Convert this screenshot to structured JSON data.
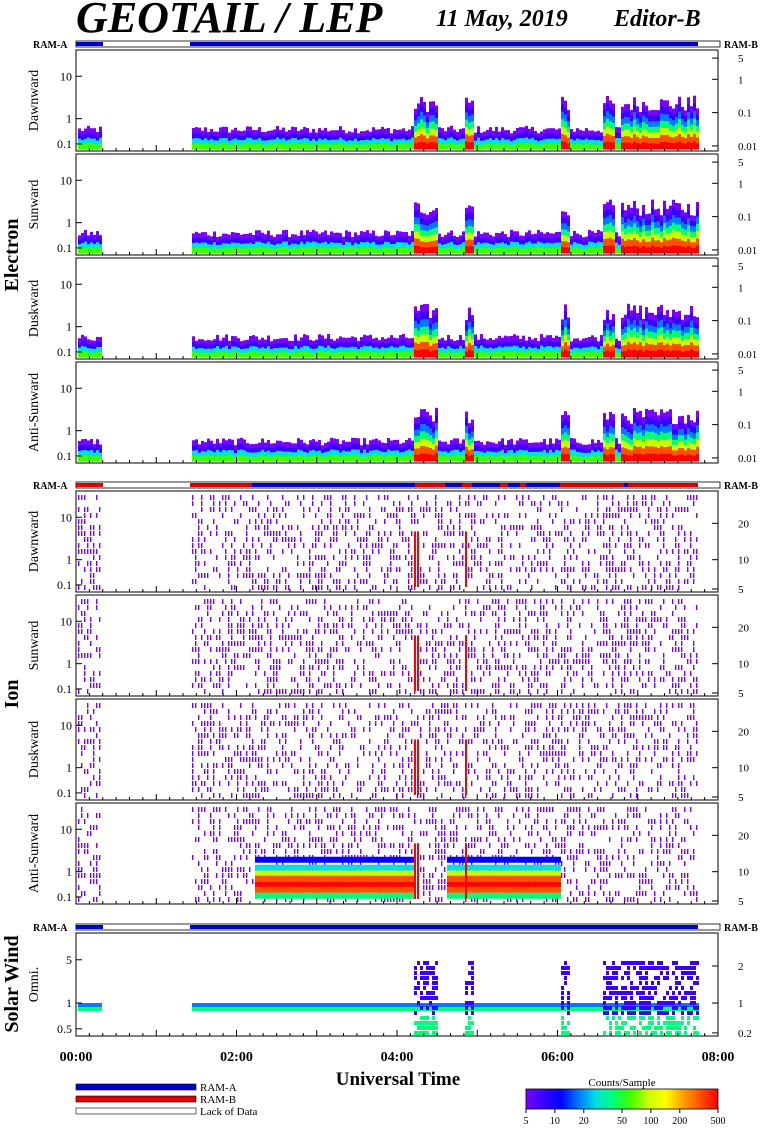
{
  "header": {
    "title": "GEOTAIL / LEP",
    "date": "11 May, 2019",
    "editor": "Editor-B"
  },
  "groups": {
    "electron": "Electron",
    "ion": "Ion",
    "solar_wind": "Solar Wind"
  },
  "ram_labels": {
    "a": "RAM-A",
    "b": "RAM-B"
  },
  "legend": {
    "ram_a": "RAM-A",
    "ram_b": "RAM-B",
    "lack": "Lack of Data",
    "colorbar_title": "Counts/Sample",
    "colorbar_ticks": [
      "5",
      "10",
      "20",
      "50",
      "100",
      "200",
      "500"
    ]
  },
  "colors": {
    "ram_a": "#0000cc",
    "ram_b": "#e00000",
    "lack": "#ffffff",
    "colormap": [
      "#7a00ff",
      "#3a00ff",
      "#0000ff",
      "#0078ff",
      "#00e0e0",
      "#00ff78",
      "#40ff00",
      "#c8ff00",
      "#ffff00",
      "#ffa000",
      "#ff5000",
      "#ff0000"
    ]
  },
  "chart_data": {
    "type": "heatmap",
    "xlabel": "Universal Time",
    "x_ticks": [
      "00:00",
      "02:00",
      "04:00",
      "06:00",
      "08:00"
    ],
    "x_range_hours": [
      0,
      8
    ],
    "data_gaps_hours": [
      [
        0.32,
        1.42
      ]
    ],
    "panels": [
      {
        "group": "Electron",
        "label": "Dawnward",
        "left_ticks": [
          "10",
          "1",
          "0.1"
        ],
        "right_ticks": [
          "5",
          "1",
          "0.1",
          "0.01"
        ]
      },
      {
        "group": "Electron",
        "label": "Sunward",
        "left_ticks": [
          "10",
          "1",
          "0.1"
        ],
        "right_ticks": [
          "5",
          "1",
          "0.1",
          "0.01"
        ]
      },
      {
        "group": "Electron",
        "label": "Duskward",
        "left_ticks": [
          "10",
          "1",
          "0.1"
        ],
        "right_ticks": [
          "5",
          "1",
          "0.1",
          "0.01"
        ]
      },
      {
        "group": "Electron",
        "label": "Anti-Sunward",
        "left_ticks": [
          "10",
          "1",
          "0.1"
        ],
        "right_ticks": [
          "5",
          "1",
          "0.1",
          "0.01"
        ]
      },
      {
        "group": "Ion",
        "label": "Dawnward",
        "left_ticks": [
          "10",
          "1",
          "0.1"
        ],
        "right_ticks": [
          "20",
          "10",
          "5"
        ]
      },
      {
        "group": "Ion",
        "label": "Sunward",
        "left_ticks": [
          "10",
          "1",
          "0.1"
        ],
        "right_ticks": [
          "20",
          "10",
          "5"
        ]
      },
      {
        "group": "Ion",
        "label": "Duskward",
        "left_ticks": [
          "10",
          "1",
          "0.1"
        ],
        "right_ticks": [
          "20",
          "10",
          "5"
        ]
      },
      {
        "group": "Ion",
        "label": "Anti-Sunward",
        "left_ticks": [
          "10",
          "1",
          "0.1"
        ],
        "right_ticks": [
          "20",
          "10",
          "5"
        ]
      },
      {
        "group": "Solar Wind",
        "label": "Omni.",
        "left_ticks": [
          "5",
          "1",
          "0.5"
        ],
        "right_ticks": [
          "2",
          "1",
          "0.2"
        ]
      }
    ],
    "colorbar": {
      "label": "Counts/Sample",
      "range": [
        5,
        500
      ],
      "scale": "log"
    }
  }
}
